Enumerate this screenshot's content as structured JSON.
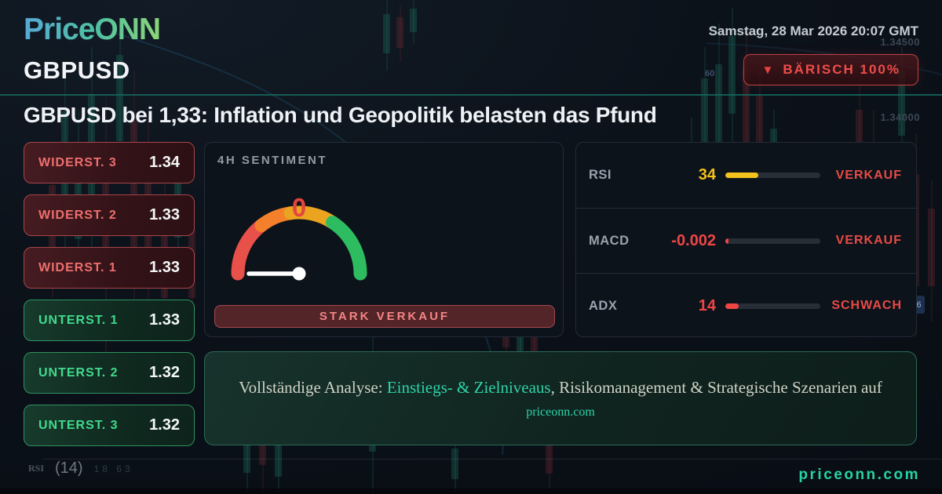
{
  "header": {
    "logo": {
      "price": "Price",
      "onn": "ONN"
    },
    "datetime": "Samstag, 28 Mar 2026 20:07 GMT",
    "symbol": "GBPUSD",
    "trend_badge": {
      "icon": "▼",
      "label": "BÄRISCH 100%",
      "color": "#ef4d4a"
    }
  },
  "headline": "GBPUSD bei 1,33: Inflation und Geopolitik belasten das Pfund",
  "levels": {
    "resistances": [
      {
        "label": "WIDERST. 3",
        "value": "1.34"
      },
      {
        "label": "WIDERST. 2",
        "value": "1.33"
      },
      {
        "label": "WIDERST. 1",
        "value": "1.33"
      }
    ],
    "supports": [
      {
        "label": "UNTERST. 1",
        "value": "1.33"
      },
      {
        "label": "UNTERST. 2",
        "value": "1.32"
      },
      {
        "label": "UNTERST. 3",
        "value": "1.32"
      }
    ]
  },
  "sentiment": {
    "title": "4H SENTIMENT",
    "value": "0",
    "button_label": "STARK VERKAUF",
    "gauge_colors": [
      "#e8504a",
      "#f4802c",
      "#eaa41f",
      "#2dbd60"
    ],
    "value_color": "#e5433e"
  },
  "indicators": [
    {
      "name": "RSI",
      "value": "34",
      "status": "VERKAUF",
      "bar_pct": 35,
      "color": "#f3c21c"
    },
    {
      "name": "MACD",
      "value": "-0.002",
      "status": "VERKAUF",
      "bar_pct": 3,
      "color": "#ef4545"
    },
    {
      "name": "ADX",
      "value": "14",
      "status": "SCHWACH",
      "bar_pct": 14,
      "color": "#ef4545"
    }
  ],
  "cta": {
    "prefix": "Vollständige Analyse: ",
    "highlight": "Einstiegs- & Zielniveaus",
    "suffix": ", Risikomanagement & Strategische Szenarien auf",
    "link": "priceonn.com"
  },
  "footer": {
    "site": "priceonn.com"
  },
  "background_labels": {
    "price_top": "1.34500",
    "price_mid": "1.34000",
    "scale": "60",
    "rsi_label": "RSI",
    "rsi_period": "(14)",
    "rsi_values": "18 63",
    "side_badge": "6"
  }
}
